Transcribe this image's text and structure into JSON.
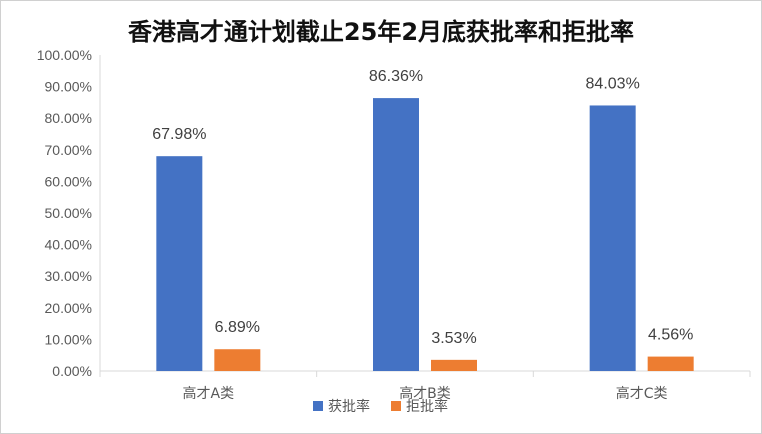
{
  "chart_data": {
    "type": "bar",
    "title": "香港高才通计划截止25年2月底获批率和拒批率",
    "categories": [
      "高才A类",
      "高才B类",
      "高才C类"
    ],
    "series": [
      {
        "name": "获批率",
        "values": [
          67.98,
          86.36,
          84.03
        ],
        "labels": [
          "67.98%",
          "86.36%",
          "84.03%"
        ],
        "color": "#4472C4"
      },
      {
        "name": "拒批率",
        "values": [
          6.89,
          3.53,
          4.56
        ],
        "labels": [
          "6.89%",
          "3.53%",
          "4.56%"
        ],
        "color": "#ED7D31"
      }
    ],
    "ylim": [
      0,
      100
    ],
    "yticks": [
      "0.00%",
      "10.00%",
      "20.00%",
      "30.00%",
      "40.00%",
      "50.00%",
      "60.00%",
      "70.00%",
      "80.00%",
      "90.00%",
      "100.00%"
    ],
    "xlabel": "",
    "ylabel": "",
    "grid": false,
    "legend": "bottom"
  }
}
